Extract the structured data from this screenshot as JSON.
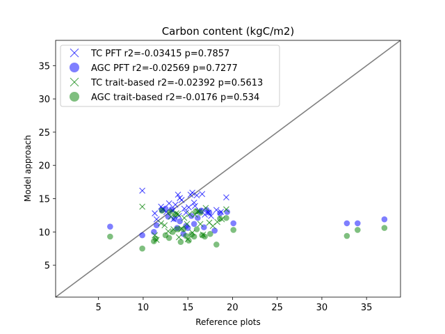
{
  "chart_data": {
    "type": "scatter",
    "title": "Carbon content (kgC/m2)",
    "xlabel": "Reference plots",
    "ylabel": "Model approach",
    "xlim": [
      0.2,
      38.8
    ],
    "ylim": [
      0.2,
      38.8
    ],
    "xticks": [
      5,
      10,
      15,
      20,
      25,
      30,
      35
    ],
    "yticks": [
      5,
      10,
      15,
      20,
      25,
      30,
      35
    ],
    "grid": false,
    "legend_position": "top-left",
    "identity_line": {
      "color": "#808080"
    },
    "series": [
      {
        "name": "TC PFT r2=-0.03415 p=0.7857",
        "marker": "x",
        "color": "#0000ff",
        "points": [
          [
            9.9,
            16.2
          ],
          [
            11.3,
            12.8
          ],
          [
            11.5,
            11.9
          ],
          [
            12.0,
            13.8
          ],
          [
            12.2,
            13.4
          ],
          [
            12.6,
            13.0
          ],
          [
            12.9,
            14.3
          ],
          [
            13.3,
            13.2
          ],
          [
            13.6,
            14.1
          ],
          [
            13.9,
            15.6
          ],
          [
            14.1,
            15.1
          ],
          [
            14.3,
            14.8
          ],
          [
            14.6,
            13.5
          ],
          [
            14.8,
            12.9
          ],
          [
            15.1,
            13.7
          ],
          [
            15.3,
            15.6
          ],
          [
            15.5,
            15.9
          ],
          [
            15.7,
            14.4
          ],
          [
            16.0,
            15.5
          ],
          [
            16.3,
            13.1
          ],
          [
            16.6,
            15.7
          ],
          [
            16.9,
            12.6
          ],
          [
            17.3,
            12.9
          ],
          [
            17.6,
            12.4
          ],
          [
            18.2,
            13.3
          ],
          [
            18.7,
            13.0
          ],
          [
            19.3,
            15.2
          ],
          [
            13.4,
            11.9
          ],
          [
            14.0,
            12.4
          ],
          [
            15.8,
            13.9
          ]
        ]
      },
      {
        "name": "AGC PFT r2=-0.02569 p=0.7277",
        "marker": "o",
        "color": "#0000ff",
        "points": [
          [
            6.3,
            10.8
          ],
          [
            9.9,
            9.5
          ],
          [
            11.2,
            10.0
          ],
          [
            11.5,
            11.0
          ],
          [
            12.1,
            13.3
          ],
          [
            12.5,
            13.5
          ],
          [
            12.8,
            12.3
          ],
          [
            13.2,
            13.4
          ],
          [
            13.5,
            12.0
          ],
          [
            13.8,
            10.6
          ],
          [
            14.1,
            11.6
          ],
          [
            14.5,
            9.7
          ],
          [
            14.8,
            10.9
          ],
          [
            15.0,
            10.6
          ],
          [
            15.4,
            12.4
          ],
          [
            15.7,
            11.2
          ],
          [
            16.1,
            12.1
          ],
          [
            16.5,
            13.2
          ],
          [
            16.8,
            10.7
          ],
          [
            17.1,
            13.3
          ],
          [
            17.4,
            12.9
          ],
          [
            18.0,
            10.2
          ],
          [
            18.6,
            12.8
          ],
          [
            19.4,
            13.0
          ],
          [
            20.1,
            11.3
          ],
          [
            32.8,
            11.3
          ],
          [
            34.0,
            11.3
          ],
          [
            37.0,
            11.9
          ]
        ]
      },
      {
        "name": "TC trait-based r2=-0.02392 p=0.5613",
        "marker": "x",
        "color": "#008000",
        "points": [
          [
            9.9,
            13.8
          ],
          [
            11.3,
            9.5
          ],
          [
            11.5,
            8.8
          ],
          [
            12.0,
            11.3
          ],
          [
            12.4,
            11.0
          ],
          [
            12.8,
            10.1
          ],
          [
            13.1,
            12.3
          ],
          [
            13.4,
            10.4
          ],
          [
            13.7,
            12.8
          ],
          [
            14.0,
            9.2
          ],
          [
            14.3,
            10.5
          ],
          [
            14.6,
            12.1
          ],
          [
            14.9,
            11.2
          ],
          [
            15.2,
            12.7
          ],
          [
            15.5,
            9.9
          ],
          [
            15.8,
            12.6
          ],
          [
            16.1,
            13.1
          ],
          [
            16.4,
            11.2
          ],
          [
            16.7,
            9.6
          ],
          [
            17.0,
            13.6
          ],
          [
            17.4,
            11.4
          ],
          [
            17.8,
            10.9
          ],
          [
            18.3,
            11.5
          ],
          [
            18.8,
            11.9
          ],
          [
            19.3,
            13.4
          ],
          [
            13.9,
            12.7
          ],
          [
            15.0,
            8.9
          ]
        ]
      },
      {
        "name": "AGC trait-based r2=-0.0176 p=0.534",
        "marker": "o",
        "color": "#008000",
        "points": [
          [
            6.3,
            9.3
          ],
          [
            9.9,
            7.5
          ],
          [
            11.2,
            8.6
          ],
          [
            11.4,
            9.0
          ],
          [
            12.1,
            13.2
          ],
          [
            12.5,
            9.5
          ],
          [
            12.9,
            9.1
          ],
          [
            13.3,
            10.0
          ],
          [
            13.6,
            12.6
          ],
          [
            13.9,
            10.4
          ],
          [
            14.2,
            8.5
          ],
          [
            14.5,
            10.4
          ],
          [
            14.8,
            9.4
          ],
          [
            15.1,
            8.7
          ],
          [
            15.4,
            9.6
          ],
          [
            15.7,
            9.3
          ],
          [
            16.0,
            10.4
          ],
          [
            16.4,
            12.9
          ],
          [
            16.6,
            9.5
          ],
          [
            16.9,
            9.3
          ],
          [
            17.5,
            9.7
          ],
          [
            18.2,
            8.1
          ],
          [
            18.6,
            12.0
          ],
          [
            19.3,
            12.1
          ],
          [
            20.1,
            10.3
          ],
          [
            32.8,
            9.4
          ],
          [
            34.0,
            10.3
          ],
          [
            37.0,
            10.6
          ],
          [
            15.9,
            13.1
          ],
          [
            13.0,
            13.0
          ]
        ]
      }
    ]
  }
}
